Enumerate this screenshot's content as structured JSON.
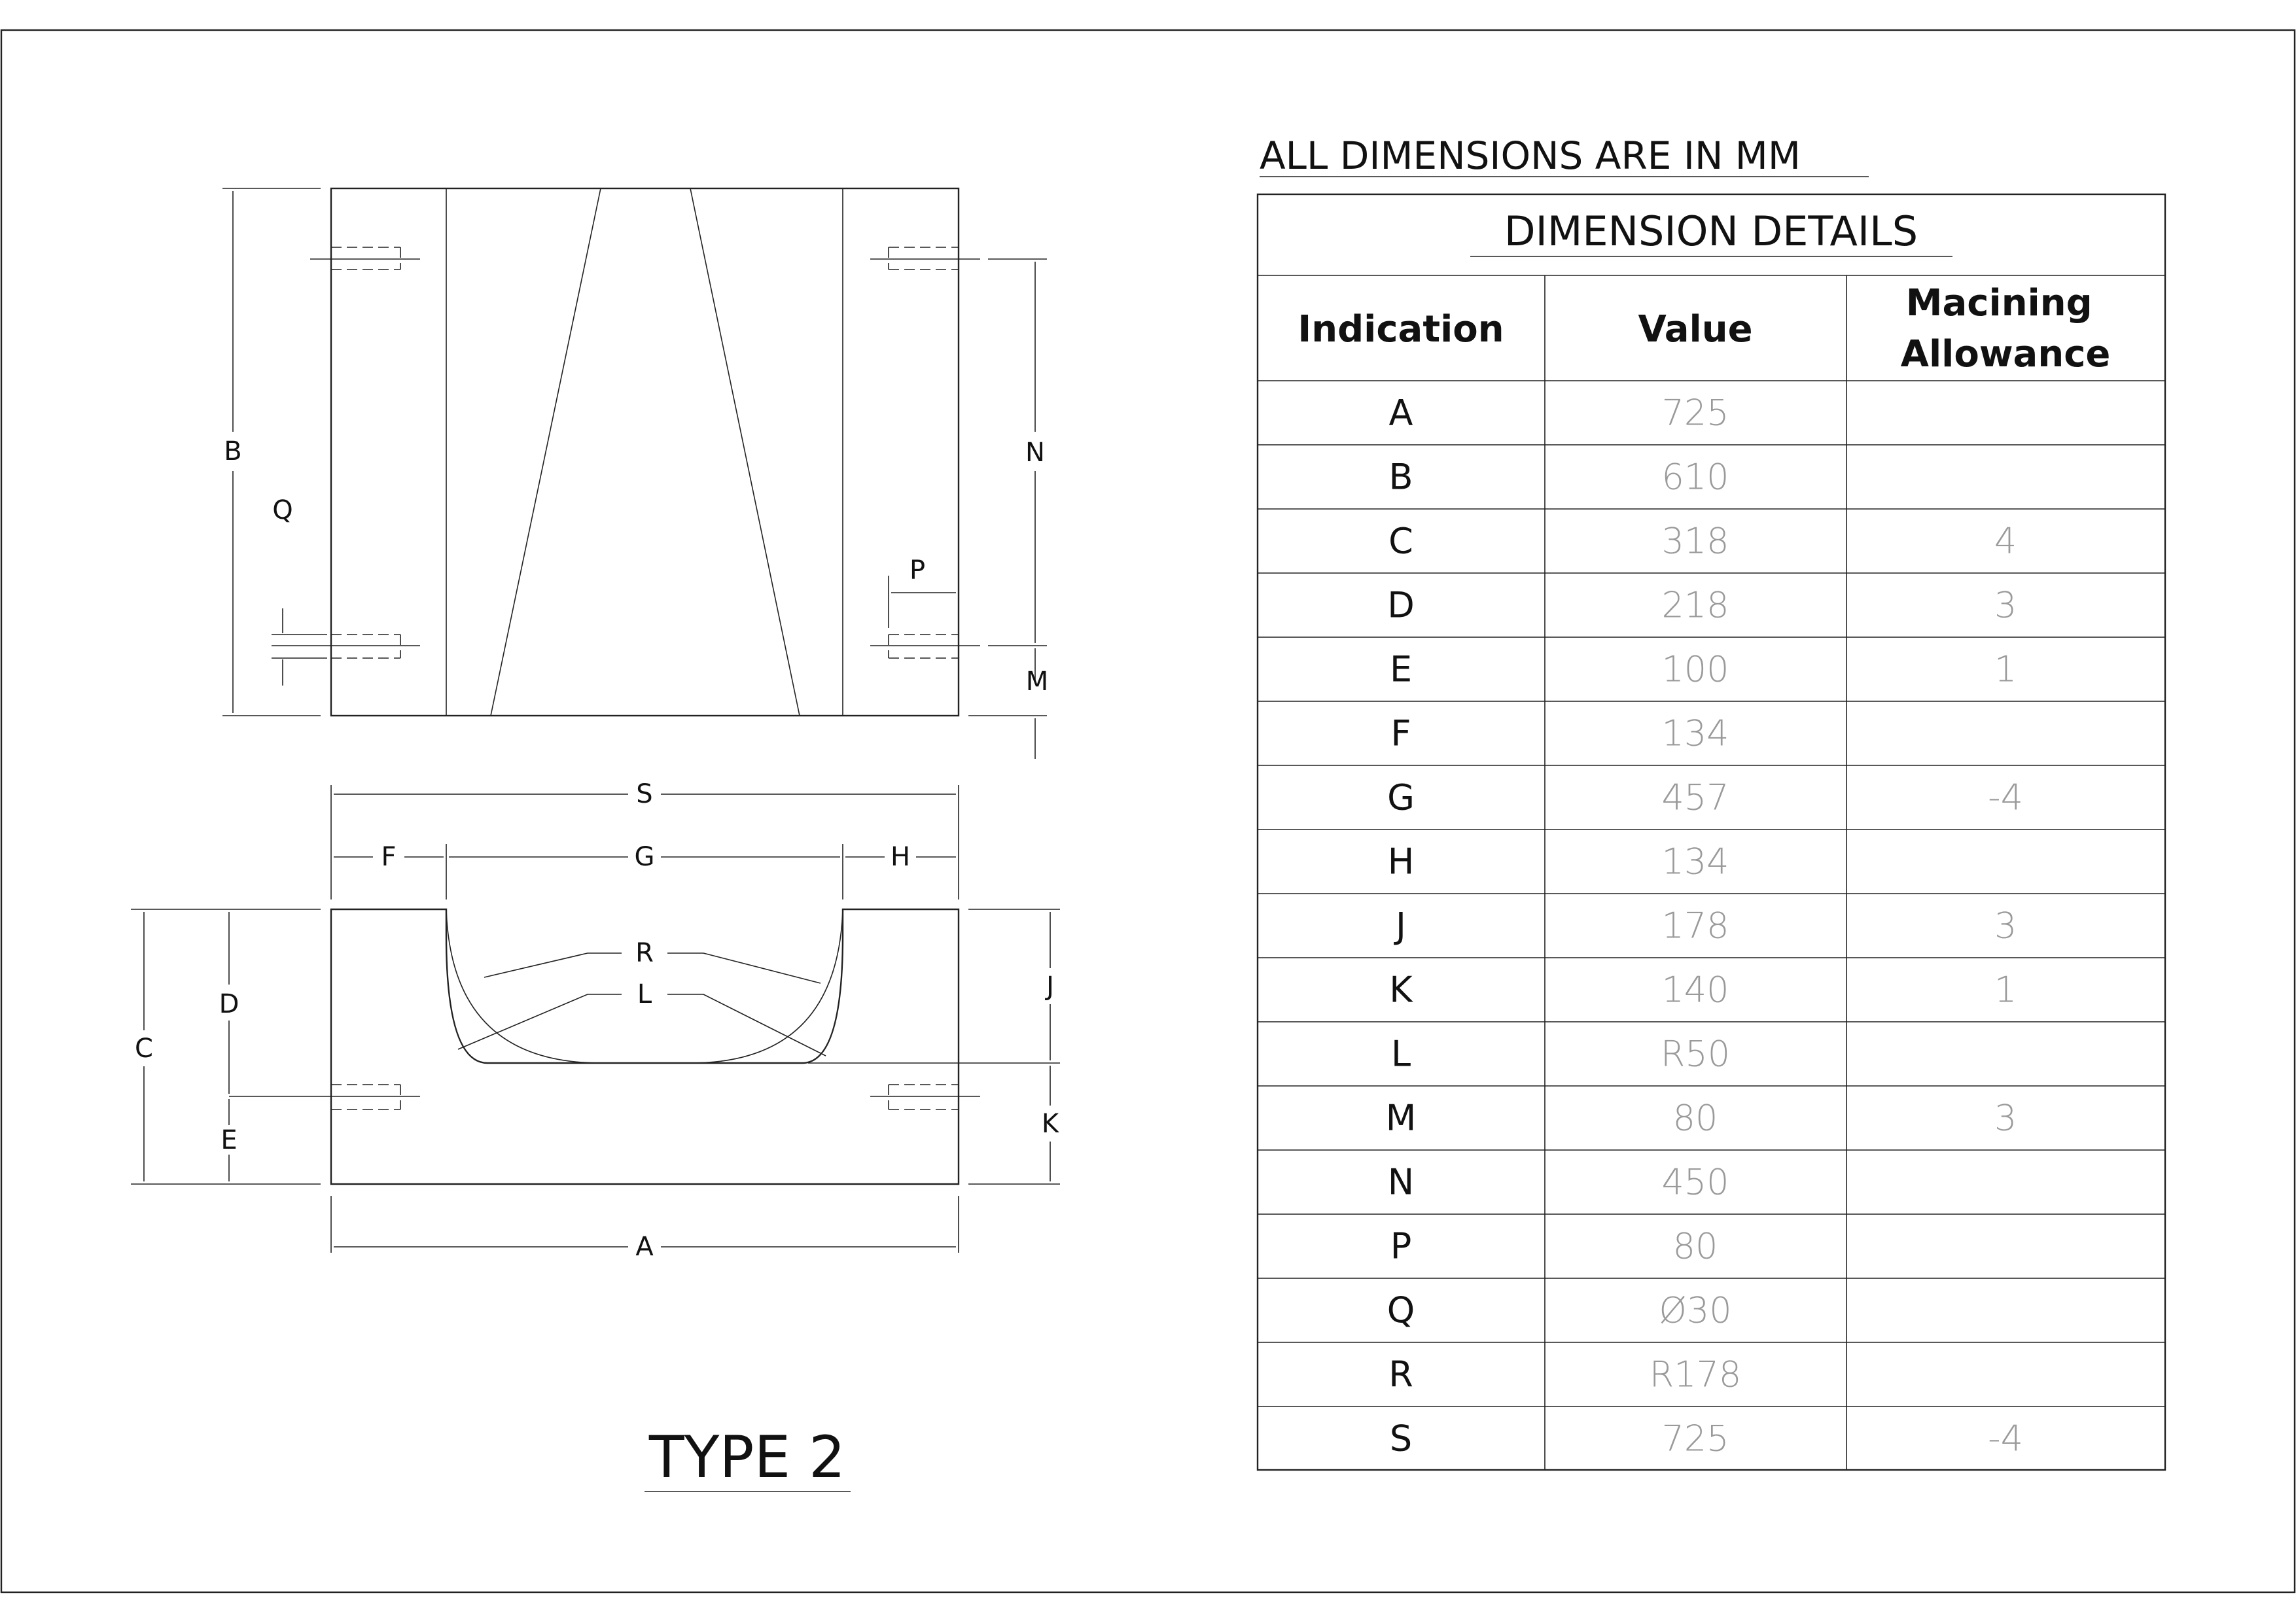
{
  "header": "ALL DIMENSIONS ARE IN MM",
  "table": {
    "title": "DIMENSION DETAILS",
    "columns": [
      "Indication",
      "Value",
      "Macining Allowance"
    ],
    "rows": [
      {
        "indication": "A",
        "value": "725",
        "allowance": ""
      },
      {
        "indication": "B",
        "value": "610",
        "allowance": ""
      },
      {
        "indication": "C",
        "value": "318",
        "allowance": "4"
      },
      {
        "indication": "D",
        "value": "218",
        "allowance": "3"
      },
      {
        "indication": "E",
        "value": "100",
        "allowance": "1"
      },
      {
        "indication": "F",
        "value": "134",
        "allowance": ""
      },
      {
        "indication": "G",
        "value": "457",
        "allowance": "-4"
      },
      {
        "indication": "H",
        "value": "134",
        "allowance": ""
      },
      {
        "indication": "J",
        "value": "178",
        "allowance": "3"
      },
      {
        "indication": "K",
        "value": "140",
        "allowance": "1"
      },
      {
        "indication": "L",
        "value": "R50",
        "allowance": ""
      },
      {
        "indication": "M",
        "value": "80",
        "allowance": "3"
      },
      {
        "indication": "N",
        "value": "450",
        "allowance": ""
      },
      {
        "indication": "P",
        "value": "80",
        "allowance": ""
      },
      {
        "indication": "Q",
        "value": "Ø30",
        "allowance": ""
      },
      {
        "indication": "R",
        "value": "R178",
        "allowance": ""
      },
      {
        "indication": "S",
        "value": "725",
        "allowance": "-4"
      }
    ]
  },
  "drawing": {
    "title": "TYPE 2",
    "labels": {
      "A": "A",
      "B": "B",
      "C": "C",
      "D": "D",
      "E": "E",
      "F": "F",
      "G": "G",
      "H": "H",
      "J": "J",
      "K": "K",
      "L": "L",
      "M": "M",
      "N": "N",
      "P": "P",
      "Q": "Q",
      "R": "R",
      "S": "S"
    }
  }
}
